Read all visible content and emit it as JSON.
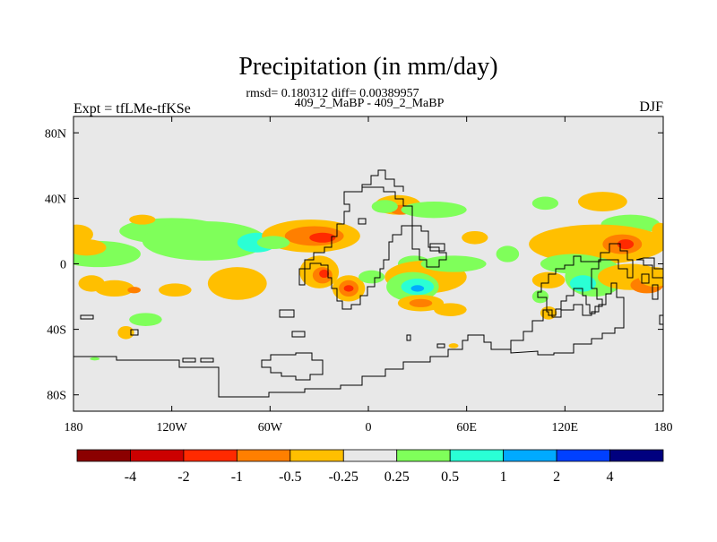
{
  "chart_data": {
    "type": "heatmap",
    "title": "Precipitation (in mm/day)",
    "stats_line": "rmsd= 0.180312 diff= 0.00389957",
    "subtitle": "409_2_MaBP - 409_2_MaBP",
    "left_label": "Expt = tfLMe-tfKSe",
    "right_label": "DJF",
    "units": "mm/day",
    "xlim": [
      -180,
      180
    ],
    "ylim": [
      -90,
      90
    ],
    "x_ticks": [
      {
        "value": -180,
        "label": "180"
      },
      {
        "value": -120,
        "label": "120W"
      },
      {
        "value": -60,
        "label": "60W"
      },
      {
        "value": 0,
        "label": "0"
      },
      {
        "value": 60,
        "label": "60E"
      },
      {
        "value": 120,
        "label": "120E"
      },
      {
        "value": 180,
        "label": "180"
      }
    ],
    "y_ticks": [
      {
        "value": 80,
        "label": "80N"
      },
      {
        "value": 40,
        "label": "40N"
      },
      {
        "value": 0,
        "label": "0"
      },
      {
        "value": -40,
        "label": "40S"
      },
      {
        "value": -80,
        "label": "80S"
      }
    ],
    "colorbar": {
      "colors": [
        "#8b0000",
        "#cc0000",
        "#ff2a00",
        "#ff7f00",
        "#ffbf00",
        "#e8e8e8",
        "#7fff5a",
        "#2affd5",
        "#00aaff",
        "#0040ff",
        "#00007f"
      ],
      "levels": [
        "-4",
        "-2",
        "-1",
        "-0.5",
        "-0.25",
        "0.25",
        "0.5",
        "1",
        "2",
        "4"
      ]
    },
    "anomalies": [
      {
        "lon": -178,
        "lat": 18,
        "w": 10,
        "h": 6,
        "color": "#ffbf00"
      },
      {
        "lon": -120,
        "lat": 20,
        "w": 32,
        "h": 8,
        "color": "#7fff5a"
      },
      {
        "lon": -165,
        "lat": 6,
        "w": 26,
        "h": 8,
        "color": "#7fff5a"
      },
      {
        "lon": -100,
        "lat": 14,
        "w": 38,
        "h": 12,
        "color": "#7fff5a"
      },
      {
        "lon": -68,
        "lat": 13,
        "w": 12,
        "h": 6,
        "color": "#2affd5"
      },
      {
        "lon": -172,
        "lat": 10,
        "w": 12,
        "h": 5,
        "color": "#ffbf00"
      },
      {
        "lon": -138,
        "lat": 27,
        "w": 8,
        "h": 3,
        "color": "#ffbf00"
      },
      {
        "lon": -35,
        "lat": 17,
        "w": 30,
        "h": 10,
        "color": "#ffbf00"
      },
      {
        "lon": -33,
        "lat": 17,
        "w": 18,
        "h": 6,
        "color": "#ff7f00"
      },
      {
        "lon": -28,
        "lat": 16,
        "w": 8,
        "h": 3,
        "color": "#ff2a00"
      },
      {
        "lon": -58,
        "lat": 13,
        "w": 10,
        "h": 4,
        "color": "#7fff5a"
      },
      {
        "lon": -80,
        "lat": -12,
        "w": 18,
        "h": 10,
        "color": "#ffbf00"
      },
      {
        "lon": -155,
        "lat": -15,
        "w": 12,
        "h": 5,
        "color": "#ffbf00"
      },
      {
        "lon": -143,
        "lat": -16,
        "w": 4,
        "h": 2,
        "color": "#ff7f00"
      },
      {
        "lon": -118,
        "lat": -16,
        "w": 10,
        "h": 4,
        "color": "#ffbf00"
      },
      {
        "lon": -136,
        "lat": -34,
        "w": 10,
        "h": 4,
        "color": "#7fff5a"
      },
      {
        "lon": -148,
        "lat": -42,
        "w": 5,
        "h": 4,
        "color": "#ffbf00"
      },
      {
        "lon": -169,
        "lat": -12,
        "w": 8,
        "h": 5,
        "color": "#ffbf00"
      },
      {
        "lon": -30,
        "lat": -5,
        "w": 12,
        "h": 10,
        "color": "#ffbf00"
      },
      {
        "lon": -28,
        "lat": -7,
        "w": 6,
        "h": 5,
        "color": "#ff7f00"
      },
      {
        "lon": -27,
        "lat": -6,
        "w": 3,
        "h": 2.5,
        "color": "#ff2a00"
      },
      {
        "lon": -12,
        "lat": -15,
        "w": 10,
        "h": 8,
        "color": "#ffbf00"
      },
      {
        "lon": -12,
        "lat": -15,
        "w": 6,
        "h": 5,
        "color": "#ff7f00"
      },
      {
        "lon": -12,
        "lat": -15,
        "w": 3,
        "h": 2,
        "color": "#ff2a00"
      },
      {
        "lon": 2,
        "lat": -8,
        "w": 8,
        "h": 4,
        "color": "#7fff5a"
      },
      {
        "lon": 18,
        "lat": 36,
        "w": 14,
        "h": 6,
        "color": "#ffbf00"
      },
      {
        "lon": 20,
        "lat": 33,
        "w": 7,
        "h": 3,
        "color": "#ff7f00"
      },
      {
        "lon": 40,
        "lat": 33,
        "w": 20,
        "h": 5,
        "color": "#7fff5a"
      },
      {
        "lon": 10,
        "lat": 35,
        "w": 8,
        "h": 4,
        "color": "#7fff5a"
      },
      {
        "lon": 28,
        "lat": 0,
        "w": 10,
        "h": 5,
        "color": "#7fff5a"
      },
      {
        "lon": 35,
        "lat": -8,
        "w": 25,
        "h": 10,
        "color": "#ffbf00"
      },
      {
        "lon": 27,
        "lat": -14,
        "w": 16,
        "h": 9,
        "color": "#7fff5a"
      },
      {
        "lon": 30,
        "lat": -14,
        "w": 10,
        "h": 5,
        "color": "#2affd5"
      },
      {
        "lon": 30,
        "lat": -15,
        "w": 4,
        "h": 2,
        "color": "#00aaff"
      },
      {
        "lon": 32,
        "lat": -24,
        "w": 14,
        "h": 5,
        "color": "#ffbf00"
      },
      {
        "lon": 32,
        "lat": -24,
        "w": 7,
        "h": 2.5,
        "color": "#ff7f00"
      },
      {
        "lon": 50,
        "lat": -28,
        "w": 10,
        "h": 4,
        "color": "#ffbf00"
      },
      {
        "lon": 52,
        "lat": 0,
        "w": 20,
        "h": 5,
        "color": "#7fff5a"
      },
      {
        "lon": 65,
        "lat": 16,
        "w": 8,
        "h": 4,
        "color": "#ffbf00"
      },
      {
        "lon": 85,
        "lat": 6,
        "w": 7,
        "h": 5,
        "color": "#7fff5a"
      },
      {
        "lon": 108,
        "lat": 37,
        "w": 8,
        "h": 4,
        "color": "#7fff5a"
      },
      {
        "lon": 143,
        "lat": 38,
        "w": 15,
        "h": 6,
        "color": "#ffbf00"
      },
      {
        "lon": 160,
        "lat": 24,
        "w": 18,
        "h": 6,
        "color": "#7fff5a"
      },
      {
        "lon": 140,
        "lat": 12,
        "w": 42,
        "h": 12,
        "color": "#ffbf00"
      },
      {
        "lon": 155,
        "lat": 12,
        "w": 12,
        "h": 6,
        "color": "#ff7f00"
      },
      {
        "lon": 157,
        "lat": 12,
        "w": 5,
        "h": 3,
        "color": "#ff2a00"
      },
      {
        "lon": 125,
        "lat": 0,
        "w": 20,
        "h": 6,
        "color": "#7fff5a"
      },
      {
        "lon": 138,
        "lat": -8,
        "w": 18,
        "h": 12,
        "color": "#7fff5a"
      },
      {
        "lon": 131,
        "lat": -12,
        "w": 8,
        "h": 5,
        "color": "#2affd5"
      },
      {
        "lon": 160,
        "lat": -8,
        "w": 20,
        "h": 8,
        "color": "#ffbf00"
      },
      {
        "lon": 170,
        "lat": -13,
        "w": 10,
        "h": 5,
        "color": "#ff7f00"
      },
      {
        "lon": 175,
        "lat": -8,
        "w": 10,
        "h": 6,
        "color": "#ffbf00"
      },
      {
        "lon": 110,
        "lat": -10,
        "w": 10,
        "h": 5,
        "color": "#ffbf00"
      },
      {
        "lon": 105,
        "lat": -20,
        "w": 5,
        "h": 4,
        "color": "#7fff5a"
      },
      {
        "lon": 110,
        "lat": -30,
        "w": 5,
        "h": 4,
        "color": "#ffbf00"
      },
      {
        "lon": 178,
        "lat": 20,
        "w": 5,
        "h": 5,
        "color": "#ffbf00"
      },
      {
        "lon": 52,
        "lat": -50,
        "w": 3,
        "h": 1.5,
        "color": "#ffbf00"
      },
      {
        "lon": -167,
        "lat": -58,
        "w": 3,
        "h": 1,
        "color": "#7fff5a"
      }
    ]
  }
}
